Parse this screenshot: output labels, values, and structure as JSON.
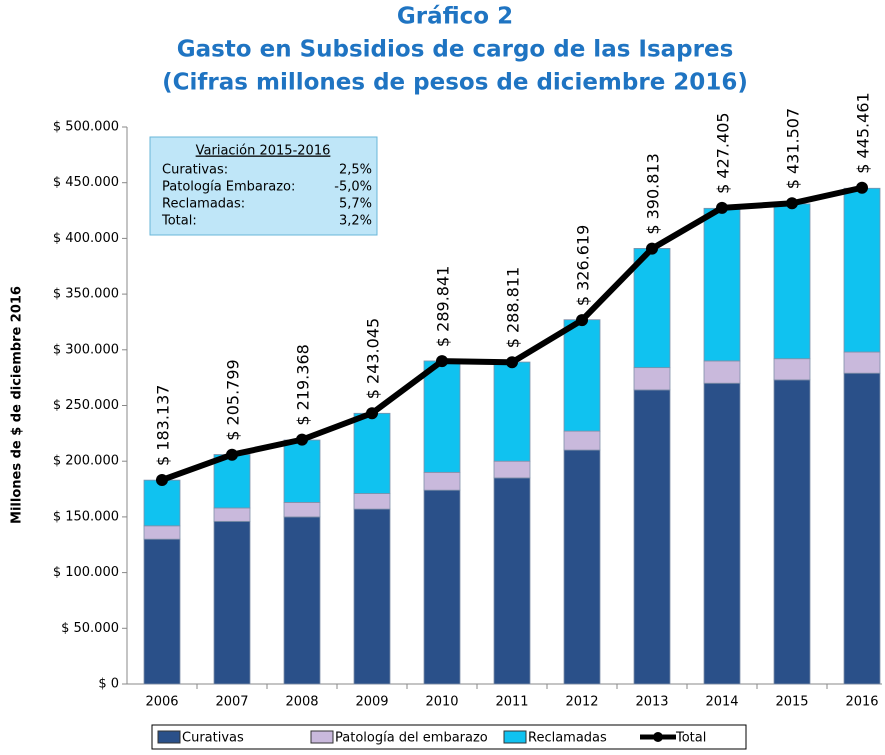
{
  "chart_data": {
    "type": "bar",
    "title": "Gráfico 2",
    "subtitle": [
      "Gasto en Subsidios de cargo de las Isapres",
      "(Cifras millones de pesos de diciembre 2016)"
    ],
    "y_label": "Millones de $ de diciembre 2016",
    "categories": [
      "2006",
      "2007",
      "2008",
      "2009",
      "2010",
      "2011",
      "2012",
      "2013",
      "2014",
      "2015",
      "2016"
    ],
    "stacked": true,
    "series": [
      {
        "name": "Curativas",
        "color": "#2a5089",
        "values": [
          130000,
          146000,
          150000,
          157000,
          174000,
          185000,
          210000,
          264000,
          270000,
          273000,
          279000
        ]
      },
      {
        "name": "Patología del embarazo",
        "color": "#c9b9dc",
        "values": [
          12000,
          12000,
          13000,
          14000,
          16000,
          15000,
          17000,
          20000,
          20000,
          19000,
          19000
        ]
      },
      {
        "name": "Reclamadas",
        "color": "#10c2f0",
        "values": [
          41000,
          48000,
          56000,
          72000,
          100000,
          89000,
          100000,
          107000,
          137000,
          139000,
          147000
        ]
      },
      {
        "name": "Total",
        "type": "line",
        "color": "#000000",
        "values": [
          183137,
          205799,
          219368,
          243045,
          289841,
          288811,
          326619,
          390813,
          427405,
          431507,
          445461
        ],
        "value_labels": [
          "$ 183.137",
          "$ 205.799",
          "$ 219.368",
          "$ 243.045",
          "$ 289.841",
          "$ 288.811",
          "$ 326.619",
          "$ 390.813",
          "$ 427.405",
          "$ 431.507",
          "$ 445.461"
        ]
      }
    ],
    "ylim": [
      0,
      500000
    ],
    "yticks": [
      {
        "value": 0,
        "label": "$ 0"
      },
      {
        "value": 50000,
        "label": "$ 50.000"
      },
      {
        "value": 100000,
        "label": "$ 100.000"
      },
      {
        "value": 150000,
        "label": "$ 150.000"
      },
      {
        "value": 200000,
        "label": "$ 200.000"
      },
      {
        "value": 250000,
        "label": "$ 250.000"
      },
      {
        "value": 300000,
        "label": "$ 300.000"
      },
      {
        "value": 350000,
        "label": "$ 350.000"
      },
      {
        "value": 400000,
        "label": "$ 400.000"
      },
      {
        "value": 450000,
        "label": "$ 450.000"
      },
      {
        "value": 500000,
        "label": "$ 500.000"
      }
    ],
    "annotation": {
      "title": "Variación 2015-2016",
      "rows": [
        [
          "Curativas:",
          "2,5%"
        ],
        [
          "Patología Embarazo:",
          "-5,0%"
        ],
        [
          "Reclamadas:",
          "5,7%"
        ],
        [
          "Total:",
          "3,2%"
        ]
      ]
    },
    "legend": "bottom"
  }
}
